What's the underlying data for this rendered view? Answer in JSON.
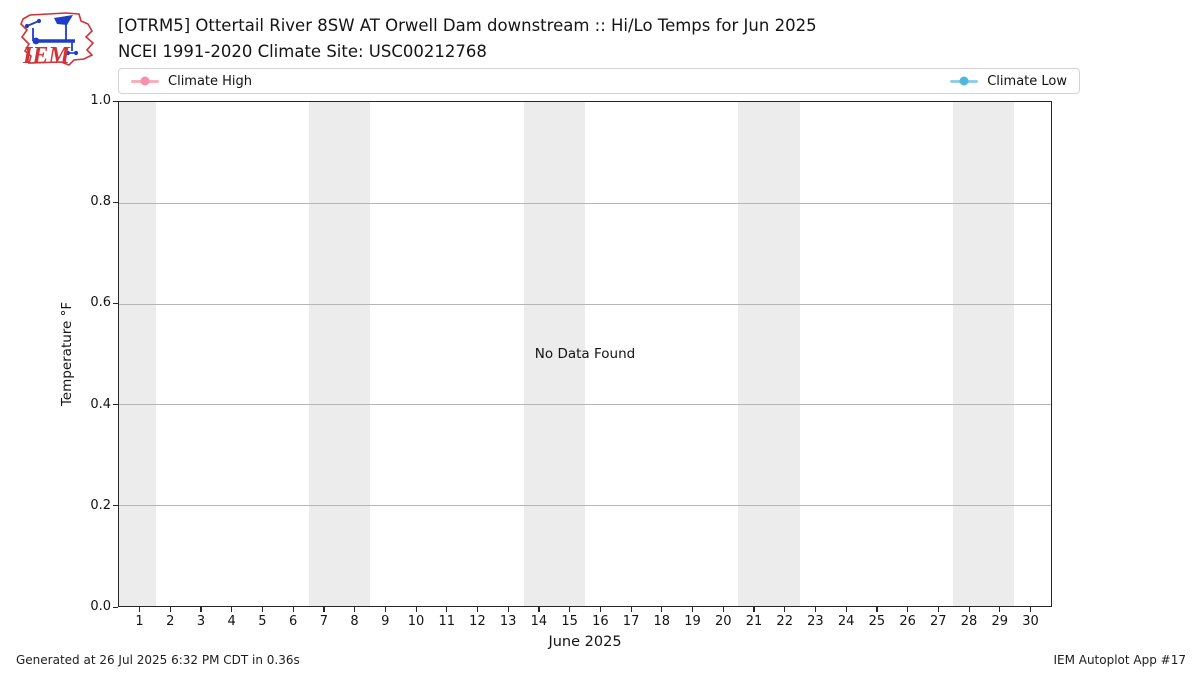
{
  "header": {
    "title": "[OTRM5] Ottertail River 8SW AT Orwell Dam downstream :: Hi/Lo Temps for Jun 2025",
    "subtitle": "NCEI 1991-2020 Climate Site: USC00212768",
    "logo_text": "IEM"
  },
  "chart_data": {
    "type": "line",
    "title": "[OTRM5] Ottertail River 8SW AT Orwell Dam downstream :: Hi/Lo Temps for Jun 2025",
    "subtitle": "NCEI 1991-2020 Climate Site: USC00212768",
    "xlabel": "June 2025",
    "ylabel": "Temperature °F",
    "no_data_text": "No Data Found",
    "xlim": [
      0.3,
      30.7
    ],
    "ylim": [
      0.0,
      1.0
    ],
    "x_ticks": [
      1,
      2,
      3,
      4,
      5,
      6,
      7,
      8,
      9,
      10,
      11,
      12,
      13,
      14,
      15,
      16,
      17,
      18,
      19,
      20,
      21,
      22,
      23,
      24,
      25,
      26,
      27,
      28,
      29,
      30
    ],
    "y_ticks": [
      {
        "label": "0.0",
        "v": 0.0
      },
      {
        "label": "0.2",
        "v": 0.2
      },
      {
        "label": "0.4",
        "v": 0.4
      },
      {
        "label": "0.6",
        "v": 0.6
      },
      {
        "label": "0.8",
        "v": 0.8
      },
      {
        "label": "1.0",
        "v": 1.0
      }
    ],
    "grid": true,
    "legend_position": "top",
    "weekend_bands": [
      [
        0.3,
        1.5
      ],
      [
        6.5,
        8.5
      ],
      [
        13.5,
        15.5
      ],
      [
        20.5,
        22.5
      ],
      [
        27.5,
        29.5
      ]
    ],
    "band_color": "#ececec",
    "series": [
      {
        "name": "Climate High",
        "line_color": "#f9afbe",
        "marker_color": "#f591aa",
        "x": [],
        "values": []
      },
      {
        "name": "Climate Low",
        "line_color": "#8fd0e8",
        "marker_color": "#55b6da",
        "x": [],
        "values": []
      }
    ]
  },
  "footer": {
    "generated": "Generated at 26 Jul 2025 6:32 PM CDT in 0.36s",
    "app": "IEM Autoplot App #17"
  }
}
